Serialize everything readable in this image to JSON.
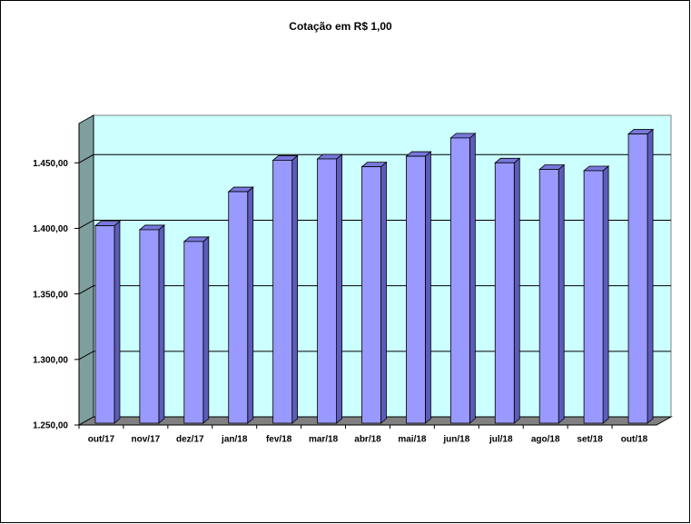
{
  "chart_data": {
    "type": "bar3d",
    "title": "Cotação em R$ 1,00",
    "categories": [
      "out/17",
      "nov/17",
      "dez/17",
      "jan/18",
      "fev/18",
      "mar/18",
      "abr/18",
      "mai/18",
      "jun/18",
      "jul/18",
      "ago/18",
      "set/18",
      "out/18"
    ],
    "values": [
      1402,
      1399,
      1390,
      1428,
      1452,
      1453,
      1447,
      1455,
      1469,
      1450,
      1445,
      1444,
      1472
    ],
    "color": "#9999ff",
    "ylim": [
      1250,
      1480
    ],
    "yticks": [
      {
        "value": 1250,
        "label": "1.250,00"
      },
      {
        "value": 1300,
        "label": "1.300,00"
      },
      {
        "value": 1350,
        "label": "1.350,00"
      },
      {
        "value": 1400,
        "label": "1.400,00"
      },
      {
        "value": 1450,
        "label": "1.450,00"
      }
    ],
    "grid": true
  }
}
